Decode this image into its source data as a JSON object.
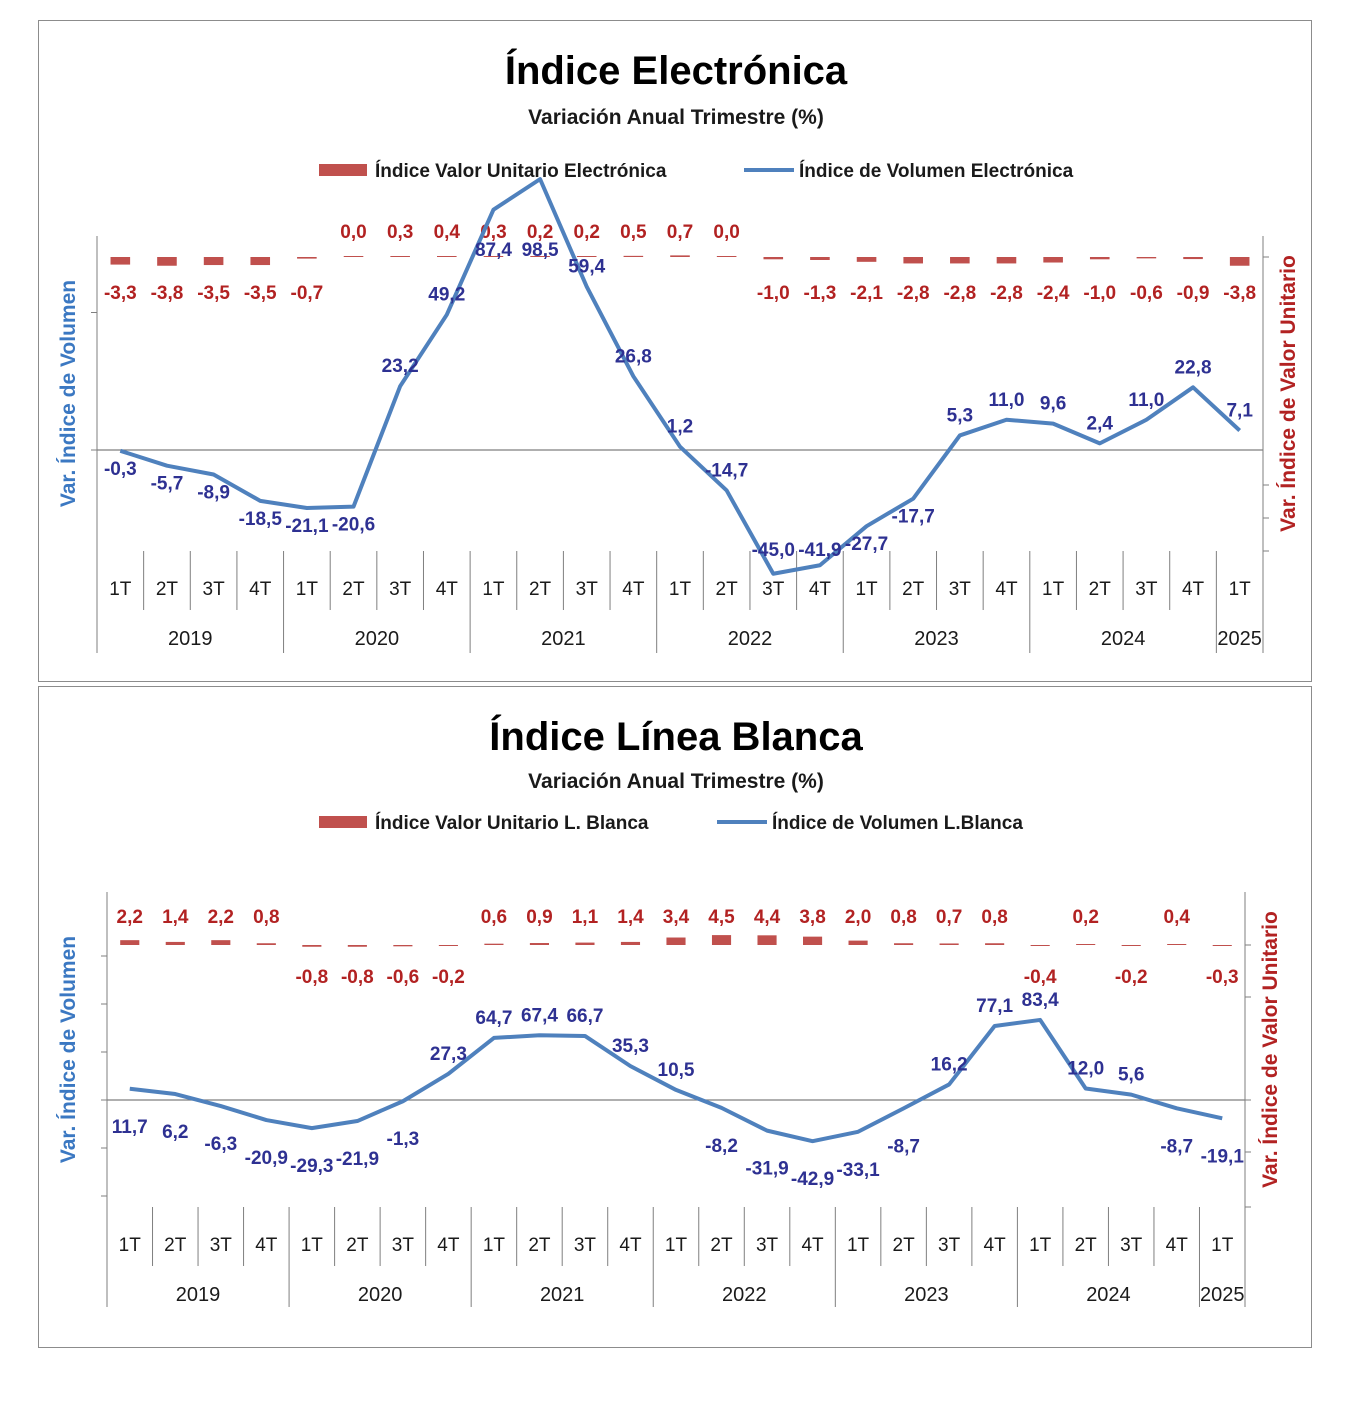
{
  "chart_data": [
    {
      "type": "line",
      "title": "Índice Electrónica",
      "subtitle": "Variación Anual Trimestre  (%)",
      "legend_position": "top",
      "categories": [
        "1T",
        "2T",
        "3T",
        "4T",
        "1T",
        "2T",
        "3T",
        "4T",
        "1T",
        "2T",
        "3T",
        "4T",
        "1T",
        "2T",
        "3T",
        "4T",
        "1T",
        "2T",
        "3T",
        "4T",
        "1T",
        "2T",
        "3T",
        "4T",
        "1T"
      ],
      "years": [
        "2019",
        "2020",
        "2021",
        "2022",
        "2023",
        "2024",
        "2025"
      ],
      "ylabel_left": "Var. Índice de Volumen",
      "ylabel_right": "Var. Índice de Valor Unitario",
      "series": [
        {
          "name": "Índice Valor Unitario Electrónica",
          "kind": "bar",
          "axis": "right",
          "color": "#c0504d",
          "labels": [
            "-3,3",
            "-3,8",
            "-3,5",
            "-3,5",
            "-0,7",
            "0,0",
            "0,3",
            "0,4",
            "0,3",
            "0,2",
            "0,2",
            "0,5",
            "0,7",
            "0,0",
            "-1,0",
            "-1,3",
            "-2,1",
            "-2,8",
            "-2,8",
            "-2,8",
            "-2,4",
            "-1,0",
            "-0,6",
            "-0,9",
            "-3,8"
          ],
          "values": [
            -3.3,
            -3.8,
            -3.5,
            -3.5,
            -0.7,
            0.0,
            0.3,
            0.4,
            0.3,
            0.2,
            0.2,
            0.5,
            0.7,
            0.0,
            -1.0,
            -1.3,
            -2.1,
            -2.8,
            -2.8,
            -2.8,
            -2.4,
            -1.0,
            -0.6,
            -0.9,
            -3.8
          ]
        },
        {
          "name": "Índice de Volumen Electrónica",
          "kind": "line",
          "axis": "left",
          "color": "#4f81bd",
          "labels": [
            "-0,3",
            "-5,7",
            "-8,9",
            "-18,5",
            "-21,1",
            "-20,6",
            "23,2",
            "49,2",
            "87,4",
            "98,5",
            "59,4",
            "26,8",
            "1,2",
            "-14,7",
            "-45,0",
            "-41,9",
            "-27,7",
            "-17,7",
            "5,3",
            "11,0",
            "9,6",
            "2,4",
            "11,0",
            "22,8",
            "7,1"
          ],
          "values": [
            -0.3,
            -5.7,
            -8.9,
            -18.5,
            -21.1,
            -20.6,
            23.2,
            49.2,
            87.4,
            98.5,
            59.4,
            26.8,
            1.2,
            -14.7,
            -45.0,
            -41.9,
            -27.7,
            -17.7,
            5.3,
            11.0,
            9.6,
            2.4,
            11.0,
            22.8,
            7.1
          ]
        }
      ]
    },
    {
      "type": "line",
      "title": "Índice Línea Blanca",
      "subtitle": "Variación Anual Trimestre  (%)",
      "legend_position": "top",
      "categories": [
        "1T",
        "2T",
        "3T",
        "4T",
        "1T",
        "2T",
        "3T",
        "4T",
        "1T",
        "2T",
        "3T",
        "4T",
        "1T",
        "2T",
        "3T",
        "4T",
        "1T",
        "2T",
        "3T",
        "4T",
        "1T",
        "2T",
        "3T",
        "4T",
        "1T"
      ],
      "years": [
        "2019",
        "2020",
        "2021",
        "2022",
        "2023",
        "2024",
        "2025"
      ],
      "ylabel_left": "Var. Índice de Volumen",
      "ylabel_right": "Var. Índice de Valor Unitario",
      "series": [
        {
          "name": "Índice Valor Unitario L. Blanca",
          "kind": "bar",
          "axis": "right",
          "color": "#c0504d",
          "labels": [
            "2,2",
            "1,4",
            "2,2",
            "0,8",
            "-0,8",
            "-0,8",
            "-0,6",
            "-0,2",
            "0,6",
            "0,9",
            "1,1",
            "1,4",
            "3,4",
            "4,5",
            "4,4",
            "3,8",
            "2,0",
            "0,8",
            "0,7",
            "0,8",
            "-0,4",
            "0,2",
            "-0,2",
            "0,4",
            "-0,3"
          ],
          "values": [
            2.2,
            1.4,
            2.2,
            0.8,
            -0.8,
            -0.8,
            -0.6,
            -0.2,
            0.6,
            0.9,
            1.1,
            1.4,
            3.4,
            4.5,
            4.4,
            3.8,
            2.0,
            0.8,
            0.7,
            0.8,
            -0.4,
            0.2,
            -0.2,
            0.4,
            -0.3
          ]
        },
        {
          "name": "Índice de Volumen L.Blanca",
          "kind": "line",
          "axis": "left",
          "color": "#4f81bd",
          "labels": [
            "11,7",
            "6,2",
            "-6,3",
            "-20,9",
            "-29,3",
            "-21,9",
            "-1,3",
            "27,3",
            "64,7",
            "67,4",
            "66,7",
            "35,3",
            "10,5",
            "-8,2",
            "-31,9",
            "-42,9",
            "-33,1",
            "-8,7",
            "16,2",
            "77,1",
            "83,4",
            "12,0",
            "5,6",
            "-8,7",
            "-19,1"
          ],
          "values": [
            11.7,
            6.2,
            -6.3,
            -20.9,
            -29.3,
            -21.9,
            -1.3,
            27.3,
            64.7,
            67.4,
            66.7,
            35.3,
            10.5,
            -8.2,
            -31.9,
            -42.9,
            -33.1,
            -8.7,
            16.2,
            77.1,
            83.4,
            12.0,
            5.6,
            -8.7,
            -19.1
          ]
        }
      ]
    }
  ]
}
